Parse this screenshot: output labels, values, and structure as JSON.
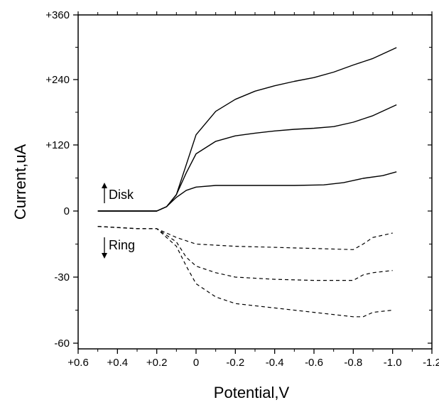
{
  "chart_data": {
    "type": "line",
    "title": "",
    "xlabel": "Potential,V",
    "ylabel": "Current,uA",
    "x_reversed": true,
    "xlim": [
      0.6,
      -1.2
    ],
    "x_ticks": [
      {
        "value": 0.6,
        "label": "+0.6"
      },
      {
        "value": 0.4,
        "label": "+0.4"
      },
      {
        "value": 0.2,
        "label": "+0.2"
      },
      {
        "value": 0.0,
        "label": "0"
      },
      {
        "value": -0.2,
        "label": "-0.2"
      },
      {
        "value": -0.4,
        "label": "-0.4"
      },
      {
        "value": -0.6,
        "label": "-0.6"
      },
      {
        "value": -0.8,
        "label": "-0.8"
      },
      {
        "value": -1.0,
        "label": "-1.0"
      },
      {
        "value": -1.2,
        "label": "-1.2"
      }
    ],
    "y_ticks": [
      "+360",
      "+240",
      "+120",
      "0",
      "-30",
      "-60"
    ],
    "y_note": "broken axis: disk current 0 to +360 uA above, ring current -60 to 0 uA below",
    "grid": false,
    "annotations": {
      "disk": "Disk",
      "ring": "Ring"
    },
    "disk_series": [
      {
        "style": "solid",
        "points": [
          [
            0.5,
            0
          ],
          [
            0.3,
            0
          ],
          [
            0.2,
            0
          ],
          [
            0.15,
            8
          ],
          [
            0.1,
            30
          ],
          [
            0.05,
            85
          ],
          [
            0.0,
            140
          ],
          [
            -0.1,
            183
          ],
          [
            -0.2,
            205
          ],
          [
            -0.3,
            220
          ],
          [
            -0.4,
            230
          ],
          [
            -0.5,
            238
          ],
          [
            -0.6,
            245
          ],
          [
            -0.7,
            255
          ],
          [
            -0.8,
            268
          ],
          [
            -0.9,
            280
          ],
          [
            -1.02,
            300
          ]
        ]
      },
      {
        "style": "solid",
        "points": [
          [
            0.5,
            0
          ],
          [
            0.3,
            0
          ],
          [
            0.2,
            0
          ],
          [
            0.15,
            8
          ],
          [
            0.1,
            30
          ],
          [
            0.05,
            70
          ],
          [
            0.0,
            105
          ],
          [
            -0.1,
            128
          ],
          [
            -0.2,
            138
          ],
          [
            -0.3,
            143
          ],
          [
            -0.4,
            147
          ],
          [
            -0.5,
            150
          ],
          [
            -0.6,
            152
          ],
          [
            -0.7,
            155
          ],
          [
            -0.8,
            163
          ],
          [
            -0.9,
            175
          ],
          [
            -1.02,
            195
          ]
        ]
      },
      {
        "style": "solid",
        "points": [
          [
            0.5,
            0
          ],
          [
            0.3,
            0
          ],
          [
            0.2,
            0
          ],
          [
            0.15,
            8
          ],
          [
            0.1,
            25
          ],
          [
            0.05,
            38
          ],
          [
            0.0,
            44
          ],
          [
            -0.1,
            47
          ],
          [
            -0.2,
            47
          ],
          [
            -0.3,
            47
          ],
          [
            -0.5,
            47
          ],
          [
            -0.65,
            48
          ],
          [
            -0.75,
            52
          ],
          [
            -0.85,
            60
          ],
          [
            -0.95,
            65
          ],
          [
            -1.02,
            72
          ]
        ]
      }
    ],
    "ring_series": [
      {
        "style": "dashed",
        "points": [
          [
            0.5,
            -7
          ],
          [
            0.3,
            -8
          ],
          [
            0.2,
            -8
          ],
          [
            0.1,
            -12
          ],
          [
            0.0,
            -15
          ],
          [
            -0.2,
            -16
          ],
          [
            -0.4,
            -16.5
          ],
          [
            -0.6,
            -17
          ],
          [
            -0.8,
            -17.5
          ],
          [
            -0.85,
            -15
          ],
          [
            -0.9,
            -12
          ],
          [
            -1.0,
            -10
          ]
        ]
      },
      {
        "style": "dashed",
        "points": [
          [
            0.5,
            -7
          ],
          [
            0.3,
            -8
          ],
          [
            0.2,
            -8
          ],
          [
            0.1,
            -14
          ],
          [
            0.05,
            -21
          ],
          [
            0.0,
            -25
          ],
          [
            -0.1,
            -28
          ],
          [
            -0.2,
            -30
          ],
          [
            -0.4,
            -31
          ],
          [
            -0.6,
            -31.5
          ],
          [
            -0.8,
            -31.5
          ],
          [
            -0.85,
            -29
          ],
          [
            -0.9,
            -28
          ],
          [
            -1.0,
            -27
          ]
        ]
      },
      {
        "style": "dashed",
        "points": [
          [
            0.5,
            -7
          ],
          [
            0.3,
            -8
          ],
          [
            0.2,
            -8
          ],
          [
            0.1,
            -16
          ],
          [
            0.05,
            -25
          ],
          [
            0.0,
            -33
          ],
          [
            -0.1,
            -39
          ],
          [
            -0.2,
            -42
          ],
          [
            -0.4,
            -44
          ],
          [
            -0.6,
            -46
          ],
          [
            -0.8,
            -48
          ],
          [
            -0.85,
            -48
          ],
          [
            -0.9,
            -46
          ],
          [
            -1.0,
            -45
          ]
        ]
      }
    ]
  }
}
